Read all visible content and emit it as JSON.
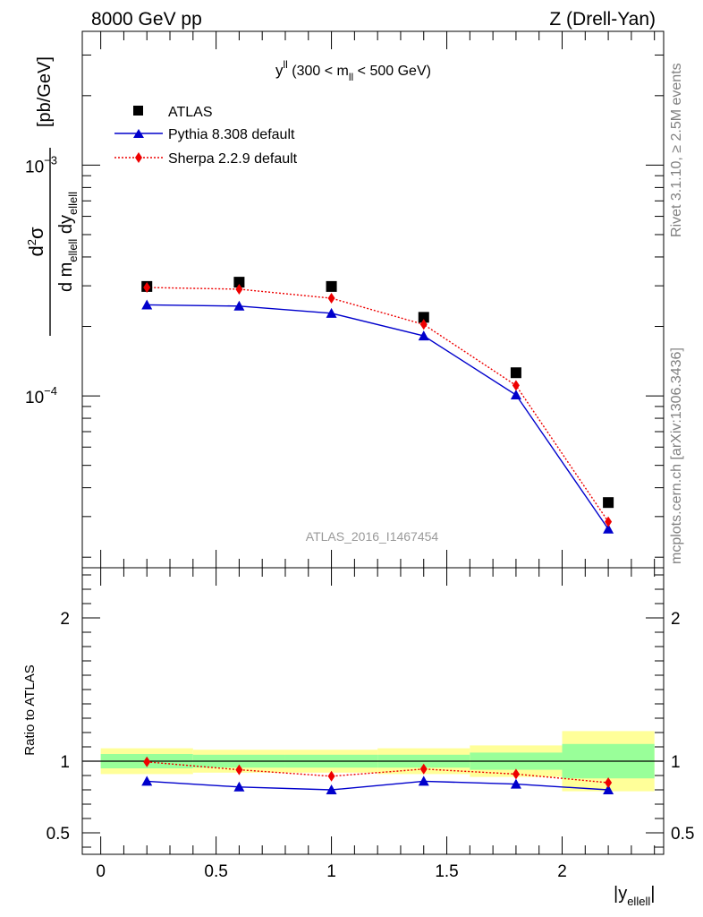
{
  "header": {
    "left": "8000 GeV pp",
    "right": "Z (Drell-Yan)"
  },
  "side_text": {
    "rivet": "Rivet 3.1.10, ≥ 2.5M events",
    "source": "mcplots.cern.ch [arXiv:1306.3436]"
  },
  "watermark": "ATLAS_2016_I1467454",
  "colors": {
    "atlas": "#000000",
    "pythia": "#0000cc",
    "sherpa": "#ee0000",
    "band_outer": "#ffff99",
    "band_inner": "#99ff99"
  },
  "chart_data": [
    {
      "type": "scatter",
      "panel": "main",
      "title": "y^ll (300 < m_ll < 500 GeV)",
      "title_parts": {
        "main": "y",
        "sup": "ll",
        "mid": " (300 < m",
        "sub": "ll",
        "end": " < 500 GeV)"
      },
      "ylabel": "d²σ / d m_elle ll dy_ellell [pb/GeV]",
      "yscale": "log",
      "ylim": [
        1.8e-05,
        0.0038
      ],
      "xlim": [
        -0.08,
        2.44
      ],
      "y_tick_labels": [
        {
          "value": 0.0001,
          "base": "10",
          "exp": "−4"
        },
        {
          "value": 0.001,
          "base": "10",
          "exp": "−3"
        }
      ],
      "series": [
        {
          "name": "ATLAS",
          "marker": "square",
          "x": [
            0.2,
            0.6,
            1.0,
            1.4,
            1.8,
            2.2
          ],
          "y": [
            0.000298,
            0.000311,
            0.000298,
            0.000219,
            0.000126,
            3.45e-05
          ]
        },
        {
          "name": "Pythia 8.308 default",
          "marker": "triangle",
          "line": "solid",
          "x": [
            0.2,
            0.6,
            1.0,
            1.4,
            1.8,
            2.2
          ],
          "y": [
            0.000248,
            0.000245,
            0.000228,
            0.000182,
            0.000101,
            2.65e-05
          ]
        },
        {
          "name": "Sherpa 2.2.9 default",
          "marker": "diamond",
          "line": "dotted",
          "x": [
            0.2,
            0.6,
            1.0,
            1.4,
            1.8,
            2.2
          ],
          "y": [
            0.000295,
            0.00029,
            0.000265,
            0.000204,
            0.000111,
            2.85e-05
          ]
        }
      ],
      "legend_position": "top-left"
    },
    {
      "type": "line",
      "panel": "ratio",
      "ylabel": "Ratio to ATLAS",
      "xlabel": "|y_ellell|",
      "ylim": [
        0.35,
        2.35
      ],
      "xlim": [
        -0.08,
        2.44
      ],
      "x_tick_labels": [
        "0",
        "0.5",
        "1",
        "1.5",
        "2"
      ],
      "x_tick_values": [
        0,
        0.5,
        1,
        1.5,
        2
      ],
      "y_tick_labels": [
        "0.5",
        "1",
        "2"
      ],
      "y_tick_values": [
        0.5,
        1,
        2
      ],
      "bands": [
        {
          "xlo": 0.0,
          "xhi": 0.4,
          "outer": [
            0.91,
            1.09
          ],
          "inner": [
            0.95,
            1.05
          ]
        },
        {
          "xlo": 0.4,
          "xhi": 0.8,
          "outer": [
            0.92,
            1.08
          ],
          "inner": [
            0.955,
            1.045
          ]
        },
        {
          "xlo": 0.8,
          "xhi": 1.2,
          "outer": [
            0.92,
            1.08
          ],
          "inner": [
            0.955,
            1.045
          ]
        },
        {
          "xlo": 1.2,
          "xhi": 1.6,
          "outer": [
            0.91,
            1.09
          ],
          "inner": [
            0.955,
            1.045
          ]
        },
        {
          "xlo": 1.6,
          "xhi": 2.0,
          "outer": [
            0.89,
            1.11
          ],
          "inner": [
            0.94,
            1.06
          ]
        },
        {
          "xlo": 2.0,
          "xhi": 2.4,
          "outer": [
            0.79,
            1.21
          ],
          "inner": [
            0.88,
            1.12
          ]
        }
      ],
      "series": [
        {
          "name": "Pythia 8.308 default",
          "x": [
            0.2,
            0.6,
            1.0,
            1.4,
            1.8,
            2.2
          ],
          "y": [
            0.86,
            0.82,
            0.8,
            0.86,
            0.84,
            0.8
          ]
        },
        {
          "name": "Sherpa 2.2.9 default",
          "x": [
            0.2,
            0.6,
            1.0,
            1.4,
            1.8,
            2.2
          ],
          "y": [
            0.995,
            0.94,
            0.895,
            0.945,
            0.91,
            0.85
          ]
        }
      ]
    }
  ]
}
